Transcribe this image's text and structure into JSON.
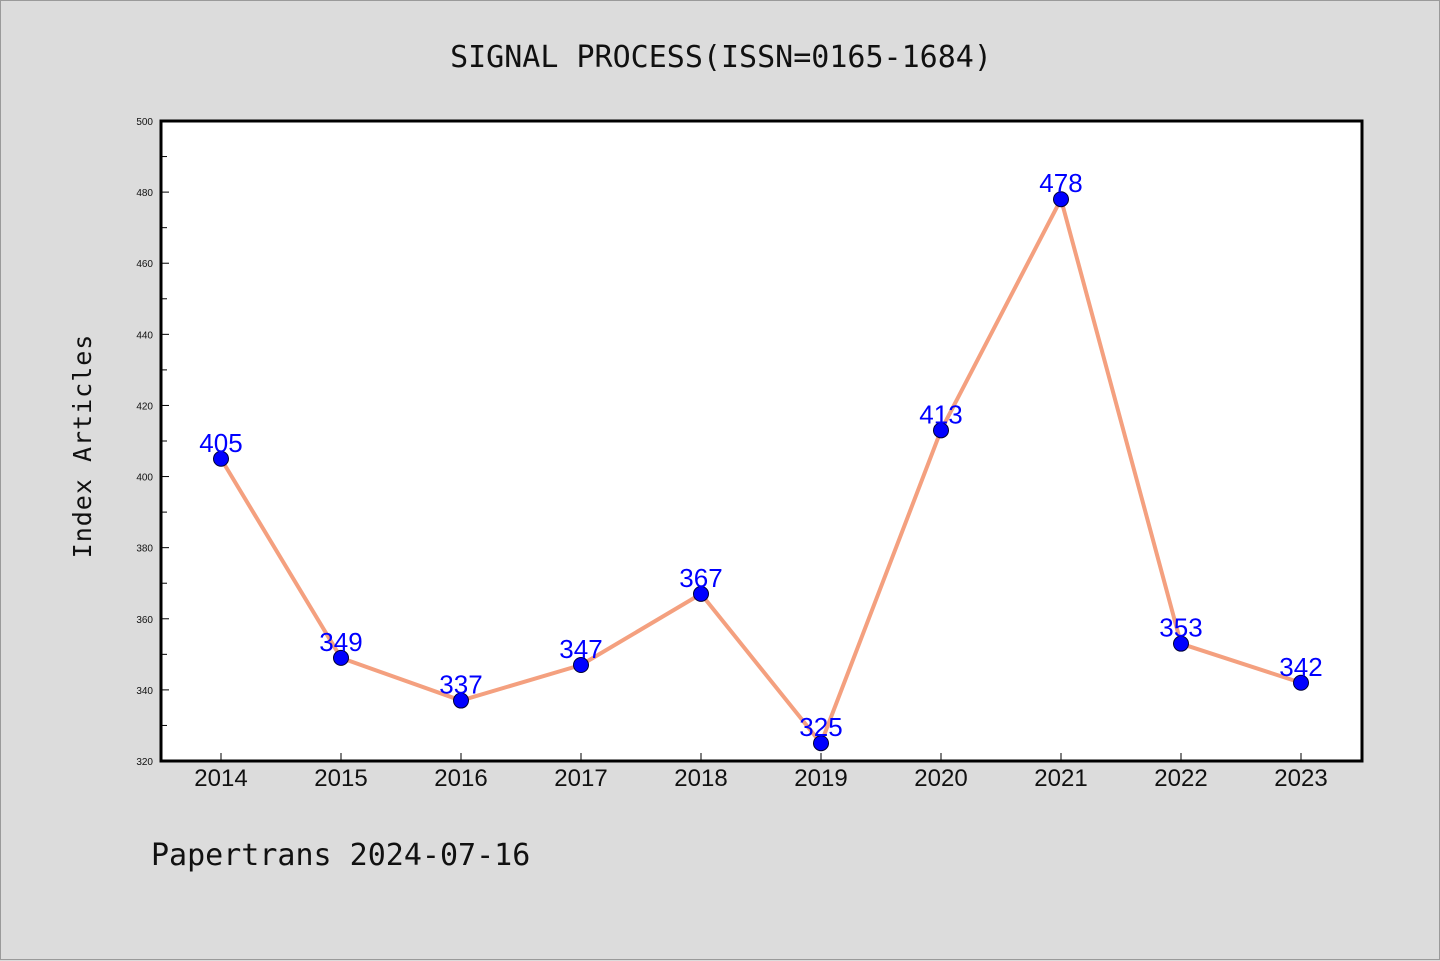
{
  "chart_data": {
    "type": "line",
    "title": "SIGNAL PROCESS(ISSN=0165-1684)",
    "xlabel": "",
    "ylabel": "Index Articles",
    "categories": [
      "2014",
      "2015",
      "2016",
      "2017",
      "2018",
      "2019",
      "2020",
      "2021",
      "2022",
      "2023"
    ],
    "series": [
      {
        "values": [
          405,
          349,
          337,
          347,
          367,
          325,
          413,
          478,
          353,
          342
        ]
      }
    ],
    "ylim": [
      320,
      500
    ],
    "yticks": [
      320,
      340,
      360,
      380,
      400,
      420,
      440,
      460,
      480,
      500
    ],
    "grid": false,
    "data_labels": true,
    "colors": {
      "line": "#f4a07f",
      "marker": "#0000ff",
      "label": "#0000ff",
      "background": "#dcdcdc",
      "plot_area": "#ffffff"
    }
  },
  "footer": "Papertrans 2024-07-16"
}
